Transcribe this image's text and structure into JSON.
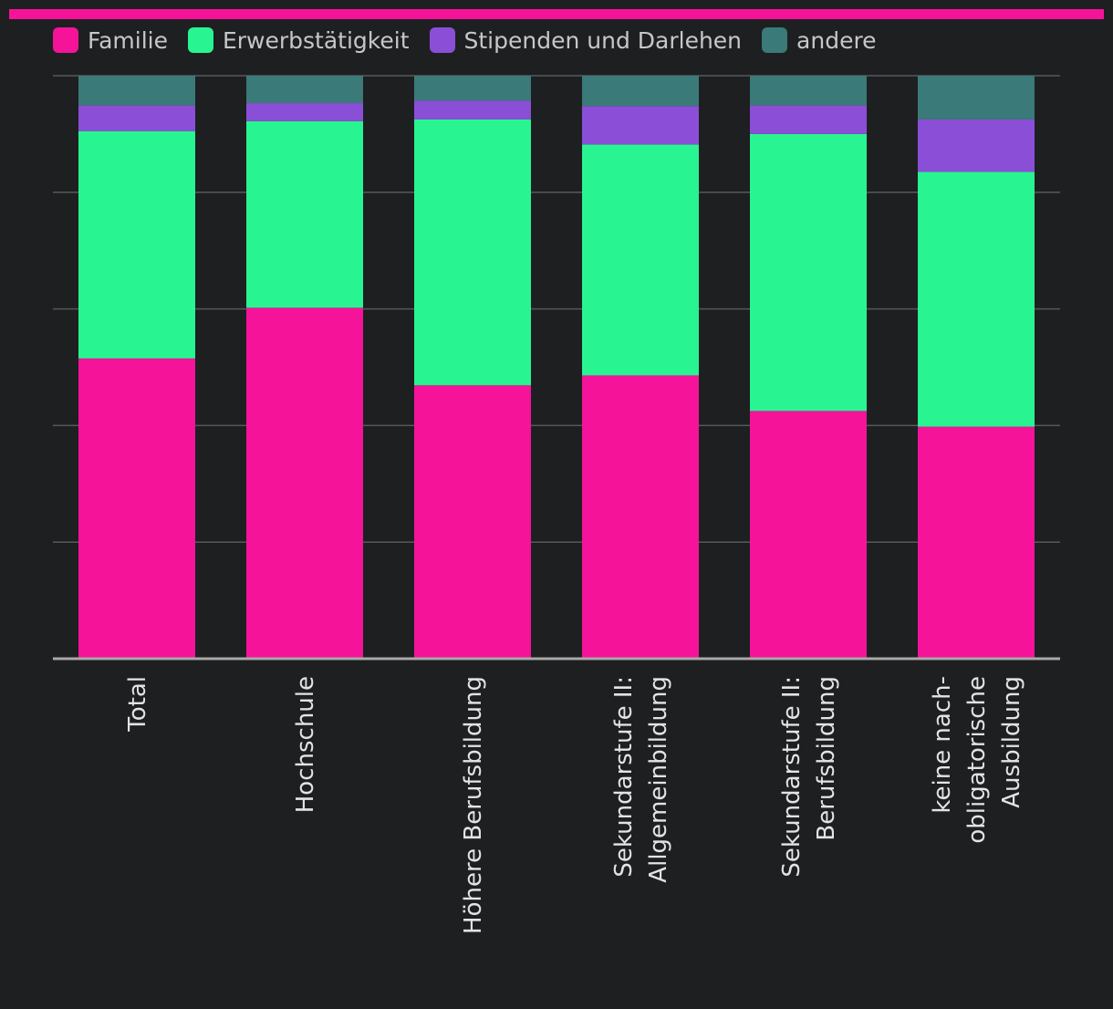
{
  "accent_color": "#f5139a",
  "chart_data": {
    "type": "bar",
    "stacked": true,
    "orientation": "vertical",
    "categories": [
      "Total",
      "Hochschule",
      "Höhere Berufsbildung",
      "Sekundarstufe II: Allgemeinbildung",
      "Sekundarstufe II: Berufsbildung",
      "keine nach-obligatorische Ausbildung"
    ],
    "category_lines": [
      [
        "Total"
      ],
      [
        "Hochschule"
      ],
      [
        "Höhere Berufsbildung"
      ],
      [
        "Sekundarstufe II:",
        "Allgemeinbildung"
      ],
      [
        "Sekundarstufe II:",
        "Berufsbildung"
      ],
      [
        "keine nach-",
        "obligatorische",
        "Ausbildung"
      ]
    ],
    "series": [
      {
        "name": "Familie",
        "color": "#f5139a",
        "values": [
          51.5,
          60.2,
          46.9,
          48.6,
          42.5,
          39.8
        ]
      },
      {
        "name": "Erwerbstätigkeit",
        "color": "#28f591",
        "values": [
          39.0,
          32.0,
          45.6,
          39.6,
          47.5,
          43.7
        ]
      },
      {
        "name": "Stipenden und Darlehen",
        "color": "#8a4fd6",
        "values": [
          4.4,
          3.1,
          3.2,
          6.6,
          4.9,
          9.0
        ]
      },
      {
        "name": "andere",
        "color": "#3a7a78",
        "values": [
          5.1,
          4.7,
          4.3,
          5.2,
          5.1,
          7.5
        ]
      }
    ],
    "ylim": [
      0,
      100
    ],
    "gridlines": [
      20,
      40,
      60,
      80,
      100
    ],
    "legend_position": "top-left",
    "title": "",
    "xlabel": "",
    "ylabel": ""
  }
}
